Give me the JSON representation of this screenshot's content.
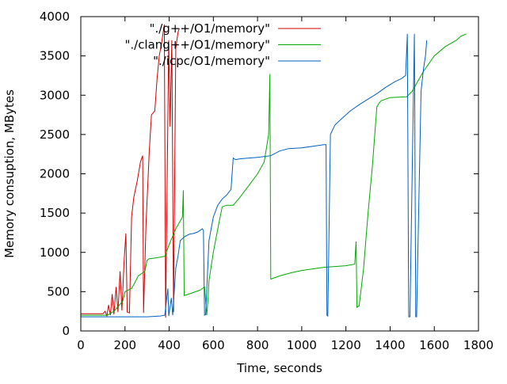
{
  "chart_data": {
    "type": "line",
    "xlabel": "Time, seconds",
    "ylabel": "Memory consuption, MBytes",
    "xlim": [
      0,
      1800
    ],
    "ylim": [
      0,
      4000
    ],
    "x_ticks": [
      0,
      200,
      400,
      600,
      800,
      1000,
      1200,
      1400,
      1600,
      1800
    ],
    "y_ticks": [
      0,
      500,
      1000,
      1500,
      2000,
      2500,
      3000,
      3500,
      4000
    ],
    "grid": false,
    "legend_position": "top-right",
    "series": [
      {
        "name": "\"./g++/O1/memory\"",
        "color": "#cc0000",
        "points": [
          [
            0,
            220
          ],
          [
            100,
            220
          ],
          [
            110,
            250
          ],
          [
            118,
            190
          ],
          [
            126,
            330
          ],
          [
            134,
            200
          ],
          [
            142,
            470
          ],
          [
            150,
            210
          ],
          [
            160,
            560
          ],
          [
            168,
            240
          ],
          [
            178,
            760
          ],
          [
            186,
            260
          ],
          [
            196,
            900
          ],
          [
            204,
            1240
          ],
          [
            210,
            240
          ],
          [
            220,
            230
          ],
          [
            230,
            1450
          ],
          [
            240,
            1700
          ],
          [
            255,
            1900
          ],
          [
            270,
            2150
          ],
          [
            280,
            2230
          ],
          [
            284,
            230
          ],
          [
            295,
            1350
          ],
          [
            310,
            2300
          ],
          [
            320,
            2750
          ],
          [
            335,
            2800
          ],
          [
            345,
            3200
          ],
          [
            355,
            3500
          ],
          [
            365,
            3650
          ],
          [
            378,
            3900
          ],
          [
            384,
            170
          ],
          [
            398,
            3700
          ],
          [
            404,
            2600
          ],
          [
            412,
            3700
          ],
          [
            420,
            240
          ],
          [
            430,
            3600
          ],
          [
            440,
            3800
          ],
          [
            446,
            3850
          ]
        ]
      },
      {
        "name": "\"./clang++/O1/memory\"",
        "color": "#00aa00",
        "points": [
          [
            0,
            200
          ],
          [
            100,
            200
          ],
          [
            120,
            200
          ],
          [
            150,
            250
          ],
          [
            190,
            380
          ],
          [
            200,
            500
          ],
          [
            230,
            540
          ],
          [
            240,
            590
          ],
          [
            260,
            700
          ],
          [
            290,
            760
          ],
          [
            300,
            900
          ],
          [
            310,
            920
          ],
          [
            340,
            930
          ],
          [
            380,
            950
          ],
          [
            400,
            1100
          ],
          [
            430,
            1300
          ],
          [
            460,
            1450
          ],
          [
            464,
            1790
          ],
          [
            468,
            450
          ],
          [
            500,
            480
          ],
          [
            540,
            520
          ],
          [
            560,
            560
          ],
          [
            570,
            200
          ],
          [
            575,
            380
          ],
          [
            580,
            640
          ],
          [
            600,
            1000
          ],
          [
            620,
            1300
          ],
          [
            640,
            1580
          ],
          [
            660,
            1600
          ],
          [
            690,
            1600
          ],
          [
            720,
            1700
          ],
          [
            760,
            1850
          ],
          [
            800,
            2000
          ],
          [
            830,
            2150
          ],
          [
            850,
            2500
          ],
          [
            856,
            3270
          ],
          [
            860,
            660
          ],
          [
            900,
            700
          ],
          [
            950,
            740
          ],
          [
            1000,
            770
          ],
          [
            1050,
            790
          ],
          [
            1100,
            810
          ],
          [
            1150,
            820
          ],
          [
            1200,
            830
          ],
          [
            1240,
            850
          ],
          [
            1246,
            1140
          ],
          [
            1250,
            300
          ],
          [
            1260,
            320
          ],
          [
            1280,
            800
          ],
          [
            1300,
            1500
          ],
          [
            1320,
            2100
          ],
          [
            1340,
            2850
          ],
          [
            1350,
            2900
          ],
          [
            1360,
            2930
          ],
          [
            1400,
            2970
          ],
          [
            1440,
            2975
          ],
          [
            1475,
            2980
          ],
          [
            1500,
            3050
          ],
          [
            1550,
            3300
          ],
          [
            1600,
            3500
          ],
          [
            1650,
            3620
          ],
          [
            1700,
            3700
          ],
          [
            1720,
            3750
          ],
          [
            1745,
            3780
          ]
        ]
      },
      {
        "name": "\"./icpc/O1/memory\"",
        "color": "#0060c0",
        "points": [
          [
            0,
            180
          ],
          [
            100,
            180
          ],
          [
            200,
            180
          ],
          [
            300,
            180
          ],
          [
            360,
            190
          ],
          [
            380,
            200
          ],
          [
            394,
            540
          ],
          [
            398,
            190
          ],
          [
            410,
            420
          ],
          [
            416,
            200
          ],
          [
            430,
            800
          ],
          [
            440,
            950
          ],
          [
            450,
            1150
          ],
          [
            470,
            1200
          ],
          [
            490,
            1230
          ],
          [
            510,
            1240
          ],
          [
            530,
            1260
          ],
          [
            550,
            1300
          ],
          [
            555,
            1280
          ],
          [
            560,
            200
          ],
          [
            565,
            210
          ],
          [
            580,
            1150
          ],
          [
            600,
            1450
          ],
          [
            620,
            1600
          ],
          [
            640,
            1680
          ],
          [
            660,
            1730
          ],
          [
            680,
            1800
          ],
          [
            690,
            2200
          ],
          [
            700,
            2180
          ],
          [
            720,
            2190
          ],
          [
            760,
            2200
          ],
          [
            800,
            2210
          ],
          [
            860,
            2230
          ],
          [
            900,
            2290
          ],
          [
            940,
            2320
          ],
          [
            1000,
            2330
          ],
          [
            1050,
            2350
          ],
          [
            1100,
            2370
          ],
          [
            1110,
            2370
          ],
          [
            1114,
            200
          ],
          [
            1118,
            190
          ],
          [
            1130,
            2500
          ],
          [
            1150,
            2620
          ],
          [
            1180,
            2700
          ],
          [
            1220,
            2800
          ],
          [
            1260,
            2880
          ],
          [
            1300,
            2950
          ],
          [
            1340,
            3020
          ],
          [
            1380,
            3100
          ],
          [
            1420,
            3170
          ],
          [
            1450,
            3210
          ],
          [
            1470,
            3250
          ],
          [
            1478,
            3780
          ],
          [
            1484,
            180
          ],
          [
            1490,
            180
          ],
          [
            1500,
            2000
          ],
          [
            1510,
            3780
          ],
          [
            1516,
            180
          ],
          [
            1520,
            180
          ],
          [
            1540,
            3050
          ],
          [
            1552,
            3350
          ],
          [
            1560,
            3500
          ],
          [
            1566,
            3700
          ]
        ]
      }
    ]
  }
}
